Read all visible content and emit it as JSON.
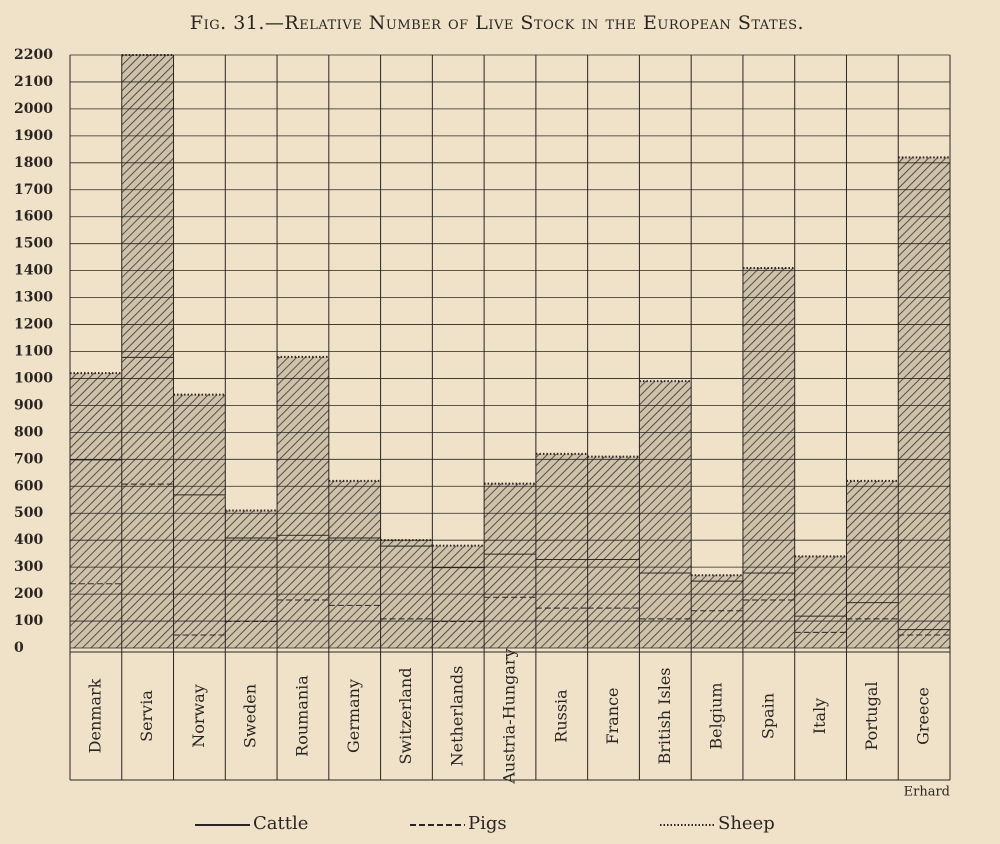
{
  "chart_data": {
    "type": "bar",
    "stacked": true,
    "title": "Fig. 31.—Relative Number of Live Stock in the European States.",
    "credit": "Erhard",
    "categories": [
      "Denmark",
      "Servia",
      "Norway",
      "Sweden",
      "Roumania",
      "Germany",
      "Switzerland",
      "Netherlands",
      "Austria-Hungary",
      "Russia",
      "France",
      "British Isles",
      "Belgium",
      "Spain",
      "Italy",
      "Portugal",
      "Greece"
    ],
    "series": [
      {
        "name": "Cattle",
        "color": "#2a2522",
        "line_style": "solid",
        "values": [
          460,
          470,
          520,
          310,
          240,
          250,
          270,
          200,
          160,
          180,
          180,
          170,
          110,
          100,
          60,
          60,
          20
        ]
      },
      {
        "name": "Pigs",
        "color": "#2a2522",
        "line_style": "dashed",
        "values": [
          240,
          610,
          50,
          100,
          180,
          160,
          110,
          100,
          190,
          150,
          150,
          110,
          140,
          180,
          60,
          110,
          50
        ]
      },
      {
        "name": "Sheep",
        "color": "#2a2522",
        "line_style": "dotted",
        "values": [
          320,
          1120,
          370,
          100,
          660,
          210,
          20,
          80,
          260,
          390,
          380,
          710,
          20,
          1130,
          220,
          450,
          1750
        ]
      }
    ],
    "ylim": [
      0,
      2200
    ],
    "yticks": [
      0,
      100,
      200,
      300,
      400,
      500,
      600,
      700,
      800,
      900,
      1000,
      1100,
      1200,
      1300,
      1400,
      1500,
      1600,
      1700,
      1800,
      1900,
      2000,
      2100,
      2200
    ],
    "grid": true
  }
}
